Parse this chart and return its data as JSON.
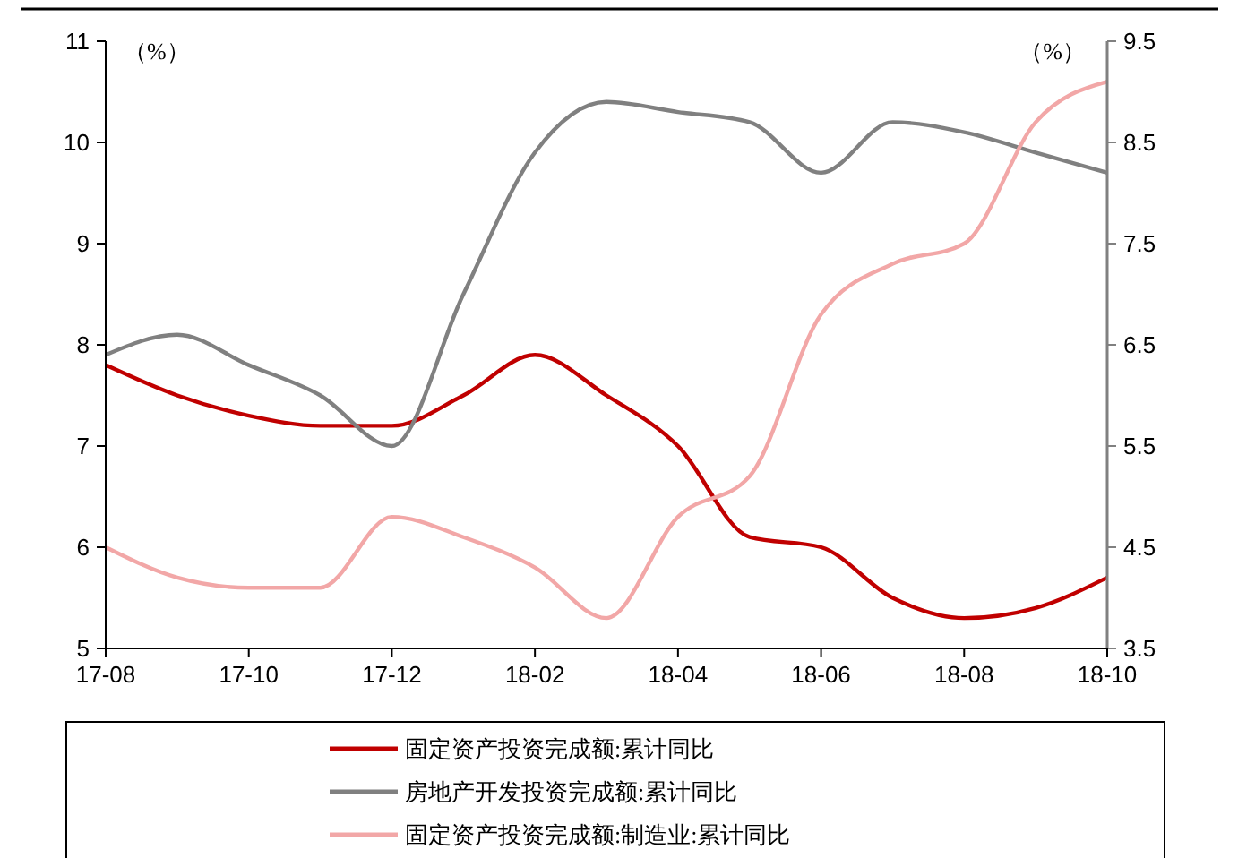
{
  "chart_data": {
    "type": "line",
    "ylabel": "（%）",
    "y2label": "（%）",
    "categories": [
      "17-08",
      null,
      "17-10",
      null,
      "17-12",
      null,
      "18-02",
      null,
      "18-04",
      null,
      "18-06",
      null,
      "18-08",
      null,
      "18-10"
    ],
    "series": [
      {
        "name": "固定资产投资完成额:累计同比",
        "color": "#c00000",
        "values": [
          7.8,
          7.5,
          7.3,
          7.2,
          7.2,
          7.5,
          7.9,
          7.5,
          7.0,
          6.1,
          6.0,
          5.5,
          5.3,
          5.4,
          5.7
        ]
      },
      {
        "name": "房地产开发投资完成额:累计同比",
        "color": "#808080",
        "values": [
          7.9,
          8.1,
          7.8,
          7.5,
          7.0,
          8.5,
          9.9,
          10.4,
          10.3,
          10.2,
          9.7,
          10.2,
          10.1,
          9.9,
          9.7
        ]
      },
      {
        "name": "固定资产投资完成额:制造业:累计同比",
        "color": "#f2a7a7",
        "axis": "y2",
        "values": [
          4.5,
          4.2,
          4.1,
          4.1,
          4.8,
          4.6,
          4.3,
          3.8,
          4.8,
          5.2,
          6.8,
          7.3,
          7.5,
          8.7,
          9.1
        ]
      }
    ],
    "ylim": [
      5,
      11
    ],
    "yticks": [
      5,
      6,
      7,
      8,
      9,
      10,
      11
    ],
    "y2lim": [
      3.5,
      9.5
    ],
    "y2ticks": [
      3.5,
      4.5,
      5.5,
      6.5,
      7.5,
      8.5,
      9.5
    ],
    "grid": false,
    "legend": "bottom",
    "marker": "none",
    "line_style": "solid"
  }
}
